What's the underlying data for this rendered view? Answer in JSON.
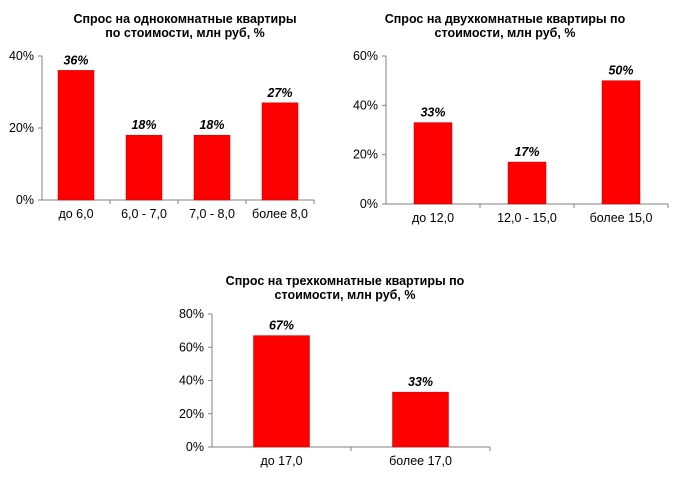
{
  "colors": {
    "bar": "#ff0000",
    "bar_edge": "#c00000",
    "axis": "#808080"
  },
  "chart_data": [
    {
      "type": "bar",
      "title_lines": [
        "Спрос на однокомнатные квартиры",
        "по стоимости, млн руб, %"
      ],
      "categories": [
        "до 6,0",
        "6,0 - 7,0",
        "7,0 - 8,0",
        "более 8,0"
      ],
      "values": [
        36,
        18,
        18,
        27
      ],
      "data_labels": [
        "36%",
        "18%",
        "18%",
        "27%"
      ],
      "ylim": [
        0,
        40
      ],
      "yticks": [
        0,
        20,
        40
      ],
      "ytick_labels": [
        "0%",
        "20%",
        "40%"
      ],
      "grid": false
    },
    {
      "type": "bar",
      "title_lines": [
        "Спрос на двухкомнатные квартиры по",
        "стоимости, млн руб, %"
      ],
      "categories": [
        "до 12,0",
        "12,0 - 15,0",
        "более 15,0"
      ],
      "values": [
        33,
        17,
        50
      ],
      "data_labels": [
        "33%",
        "17%",
        "50%"
      ],
      "ylim": [
        0,
        60
      ],
      "yticks": [
        0,
        20,
        40,
        60
      ],
      "ytick_labels": [
        "0%",
        "20%",
        "40%",
        "60%"
      ],
      "grid": false
    },
    {
      "type": "bar",
      "title_lines": [
        "Спрос на трехкомнатные квартиры по",
        "стоимости, млн руб, %"
      ],
      "categories": [
        "до 17,0",
        "более 17,0"
      ],
      "values": [
        67,
        33
      ],
      "data_labels": [
        "67%",
        "33%"
      ],
      "ylim": [
        0,
        80
      ],
      "yticks": [
        0,
        20,
        40,
        60,
        80
      ],
      "ytick_labels": [
        "0%",
        "20%",
        "40%",
        "60%",
        "80%"
      ],
      "grid": false
    }
  ]
}
